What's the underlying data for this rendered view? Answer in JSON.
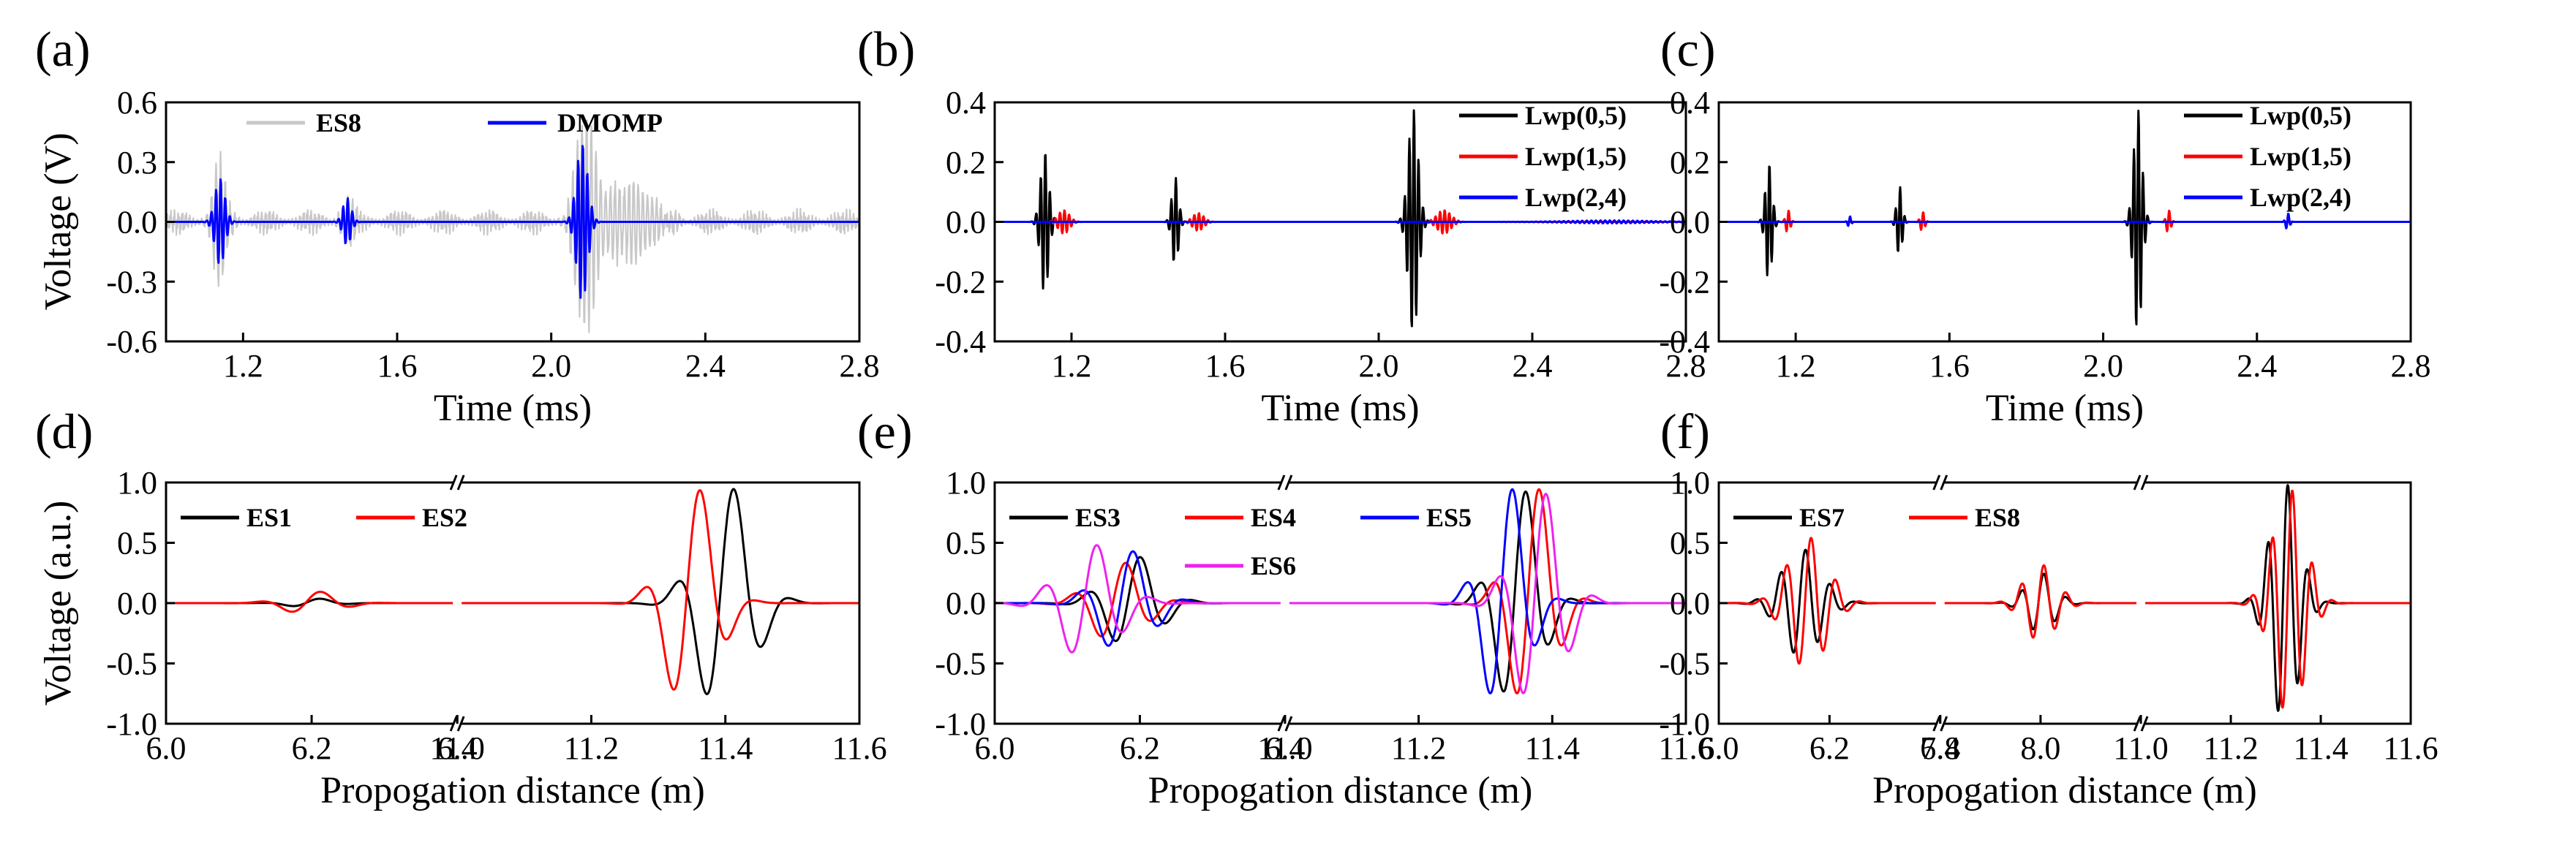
{
  "ylabels": {
    "top": "Voltage (V)",
    "bottom": "Voltage (a.u.)"
  },
  "chart_data": [
    {
      "id": "a",
      "panel_label": "(a)",
      "type": "line",
      "xlabel": "Time (ms)",
      "ylabel": "Voltage (V)",
      "xlim": [
        1.0,
        2.8
      ],
      "ylim": [
        -0.6,
        0.6
      ],
      "xticks": [
        "1.2",
        "1.6",
        "2.0",
        "2.4",
        "2.8"
      ],
      "yticks": [
        "0.6",
        "0.3",
        "0.0",
        "-0.3",
        "-0.6"
      ],
      "legend_position": "top-center",
      "series": [
        {
          "name": "ES8",
          "color": "#c8c8c8",
          "kind": "noisy",
          "noise": 0.07,
          "packets": [
            [
              1.14,
              0.3,
              0.025
            ],
            [
              1.47,
              0.12,
              0.02
            ],
            [
              2.09,
              0.55,
              0.035
            ],
            [
              2.2,
              0.2,
              0.08
            ]
          ]
        },
        {
          "name": "DMOMP",
          "color": "#0000ff",
          "kind": "packets",
          "packets": [
            [
              1.14,
              0.22,
              0.018
            ],
            [
              1.47,
              0.12,
              0.015
            ],
            [
              2.08,
              0.4,
              0.02
            ]
          ]
        }
      ]
    },
    {
      "id": "b",
      "panel_label": "(b)",
      "type": "line",
      "xlabel": "Time (ms)",
      "ylabel": "",
      "xlim": [
        1.0,
        2.8
      ],
      "ylim": [
        -0.4,
        0.4
      ],
      "xticks": [
        "1.2",
        "1.6",
        "2.0",
        "2.4",
        "2.8"
      ],
      "yticks": [
        "0.4",
        "0.2",
        "0.0",
        "-0.2",
        "-0.4"
      ],
      "legend_position": "top-right",
      "series": [
        {
          "name": "Lwp(0,5)",
          "color": "#000000",
          "kind": "packets",
          "packets": [
            [
              1.13,
              0.24,
              0.015
            ],
            [
              1.47,
              0.15,
              0.012
            ],
            [
              2.09,
              0.38,
              0.018
            ]
          ]
        },
        {
          "name": "Lwp(1,5)",
          "color": "#ff0000",
          "kind": "packets",
          "packets": [
            [
              1.18,
              0.04,
              0.02
            ],
            [
              1.53,
              0.03,
              0.02
            ],
            [
              2.17,
              0.04,
              0.025
            ]
          ]
        },
        {
          "name": "Lwp(2,4)",
          "color": "#0000ff",
          "kind": "packets",
          "packets": [
            [
              2.6,
              0.005,
              0.15
            ]
          ]
        }
      ]
    },
    {
      "id": "c",
      "panel_label": "(c)",
      "type": "line",
      "xlabel": "Time (ms)",
      "ylabel": "",
      "xlim": [
        1.0,
        2.8
      ],
      "ylim": [
        -0.4,
        0.4
      ],
      "xticks": [
        "1.2",
        "1.6",
        "2.0",
        "2.4",
        "2.8"
      ],
      "yticks": [
        "0.4",
        "0.2",
        "0.0",
        "-0.2",
        "-0.4"
      ],
      "legend_position": "top-right",
      "series": [
        {
          "name": "Lwp(0,5)",
          "color": "#000000",
          "kind": "packets",
          "packets": [
            [
              1.13,
              0.2,
              0.012
            ],
            [
              1.47,
              0.12,
              0.01
            ],
            [
              2.09,
              0.38,
              0.015
            ]
          ]
        },
        {
          "name": "Lwp(1,5)",
          "color": "#ff0000",
          "kind": "packets",
          "packets": [
            [
              1.18,
              0.04,
              0.008
            ],
            [
              1.53,
              0.035,
              0.008
            ],
            [
              2.17,
              0.04,
              0.008
            ]
          ]
        },
        {
          "name": "Lwp(2,4)",
          "color": "#0000ff",
          "kind": "packets",
          "packets": [
            [
              1.34,
              0.02,
              0.006
            ],
            [
              2.48,
              0.03,
              0.007
            ]
          ]
        }
      ]
    },
    {
      "id": "d",
      "panel_label": "(d)",
      "type": "line",
      "xlabel": "Propogation distance (m)",
      "ylabel": "Voltage (a.u.)",
      "ylim": [
        -1.0,
        1.0
      ],
      "yticks": [
        "1.0",
        "0.5",
        "0.0",
        "-0.5",
        "-1.0"
      ],
      "legend_position": "top-left",
      "segments": [
        {
          "range": [
            6.0,
            6.4
          ],
          "ticks": [
            "6.0",
            "6.2",
            "6.4"
          ]
        },
        {
          "range": [
            11.0,
            11.6
          ],
          "ticks": [
            "11.0",
            "11.2",
            "11.4",
            "11.6"
          ]
        }
      ],
      "series": [
        {
          "name": "ES1",
          "color": "#000000",
          "kind": "packets",
          "wl": 0.09,
          "packets": [
            [
              6.2,
              0.04,
              0.04
            ],
            [
              11.4,
              1.0,
              0.055
            ]
          ]
        },
        {
          "name": "ES2",
          "color": "#ff0000",
          "kind": "packets",
          "wl": 0.09,
          "packets": [
            [
              6.2,
              0.1,
              0.05
            ],
            [
              11.35,
              1.0,
              0.05
            ]
          ]
        }
      ]
    },
    {
      "id": "e",
      "panel_label": "(e)",
      "type": "line",
      "xlabel": "Propogation distance (m)",
      "ylabel": "",
      "ylim": [
        -1.0,
        1.0
      ],
      "yticks": [
        "1.0",
        "0.5",
        "0.0",
        "-0.5",
        "-1.0"
      ],
      "legend_position": "top-left",
      "segments": [
        {
          "range": [
            6.0,
            6.4
          ],
          "ticks": [
            "6.0",
            "6.2",
            "6.4"
          ]
        },
        {
          "range": [
            11.0,
            11.6
          ],
          "ticks": [
            "11.0",
            "11.2",
            "11.4",
            "11.6"
          ]
        }
      ],
      "series": [
        {
          "name": "ES3",
          "color": "#000000",
          "kind": "packets",
          "wl": 0.075,
          "packets": [
            [
              6.19,
              0.4,
              0.05
            ],
            [
              11.35,
              0.98,
              0.045
            ]
          ]
        },
        {
          "name": "ES4",
          "color": "#ff0000",
          "kind": "packets",
          "wl": 0.075,
          "packets": [
            [
              6.17,
              0.35,
              0.05
            ],
            [
              11.37,
              1.0,
              0.045
            ]
          ]
        },
        {
          "name": "ES5",
          "color": "#0000ff",
          "kind": "packets",
          "wl": 0.075,
          "packets": [
            [
              6.18,
              0.45,
              0.05
            ],
            [
              11.33,
              1.0,
              0.045
            ]
          ]
        },
        {
          "name": "ES6",
          "color": "#ee22ee",
          "kind": "packets",
          "wl": 0.075,
          "packets": [
            [
              6.13,
              0.5,
              0.055
            ],
            [
              11.38,
              0.95,
              0.05
            ]
          ]
        }
      ]
    },
    {
      "id": "f",
      "panel_label": "(f)",
      "type": "line",
      "xlabel": "Propogation distance (m)",
      "ylabel": "",
      "ylim": [
        -1.0,
        1.0
      ],
      "yticks": [
        "1.0",
        "0.5",
        "0.0",
        "-0.5",
        "-1.0"
      ],
      "legend_position": "top-left",
      "segments": [
        {
          "range": [
            6.0,
            6.4
          ],
          "ticks": [
            "6.0",
            "6.2",
            "6.4"
          ]
        },
        {
          "range": [
            7.8,
            8.2
          ],
          "ticks": [
            "7.8",
            "8.0"
          ]
        },
        {
          "range": [
            11.0,
            11.6
          ],
          "ticks": [
            "11.0",
            "11.2",
            "11.4",
            "11.6"
          ]
        }
      ],
      "series": [
        {
          "name": "ES7",
          "color": "#000000",
          "kind": "packets",
          "wl": 0.045,
          "packets": [
            [
              6.15,
              0.45,
              0.05
            ],
            [
              8.0,
              0.25,
              0.04
            ],
            [
              11.32,
              1.0,
              0.045
            ]
          ]
        },
        {
          "name": "ES8",
          "color": "#ff0000",
          "kind": "packets",
          "wl": 0.045,
          "packets": [
            [
              6.16,
              0.55,
              0.05
            ],
            [
              8.0,
              0.32,
              0.045
            ],
            [
              11.33,
              0.95,
              0.05
            ]
          ]
        }
      ]
    }
  ]
}
